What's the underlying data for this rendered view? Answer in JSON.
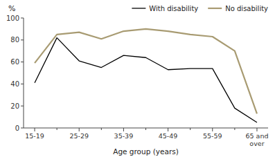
{
  "chart_data": {
    "type": "line",
    "categories": [
      "15-19",
      null,
      "25-29",
      null,
      "35-39",
      null,
      "45-49",
      null,
      "55-59",
      null,
      "65 and\nover"
    ],
    "series": [
      {
        "name": "With disability",
        "color": "#000000",
        "values": [
          41,
          82,
          61,
          55,
          66,
          64,
          53,
          54,
          54,
          18,
          5
        ]
      },
      {
        "name": "No disability",
        "color": "#a89b72",
        "values": [
          59,
          85,
          87,
          81,
          88,
          90,
          88,
          85,
          83,
          70,
          13
        ]
      }
    ],
    "ylabel": "%",
    "xlabel": "Age group (years)",
    "ylim": [
      0,
      100
    ],
    "yticks": [
      0,
      20,
      40,
      60,
      80,
      100
    ],
    "grid": false,
    "legend": "upper right"
  }
}
